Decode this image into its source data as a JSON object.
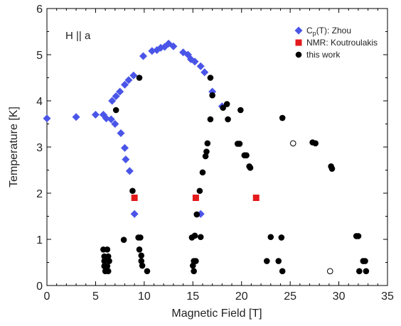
{
  "chart_data": {
    "type": "scatter",
    "title": "",
    "xlabel": "Magnetic Field [T]",
    "ylabel": "Temperature [K]",
    "xlim": [
      0,
      35
    ],
    "ylim": [
      0,
      6
    ],
    "xticks": [
      0,
      5,
      10,
      15,
      20,
      25,
      30,
      35
    ],
    "yticks": [
      0,
      1,
      2,
      3,
      4,
      5,
      6
    ],
    "grid": false,
    "legend_position": "top-right",
    "annotation": "H || a",
    "series": [
      {
        "name": "Cp(T): Zhou",
        "legend_main": "C",
        "legend_sub": "p",
        "legend_rest": "(T): Zhou",
        "marker": "diamond",
        "color": "#4a55e8",
        "points": [
          [
            0,
            3.62
          ],
          [
            3.0,
            3.65
          ],
          [
            5.0,
            3.7
          ],
          [
            5.8,
            3.7
          ],
          [
            6.1,
            3.62
          ],
          [
            6.6,
            3.6
          ],
          [
            7.0,
            3.5
          ],
          [
            7.6,
            3.3
          ],
          [
            8.0,
            2.98
          ],
          [
            8.1,
            2.73
          ],
          [
            8.5,
            2.48
          ],
          [
            9.0,
            1.55
          ],
          [
            6.7,
            4.0
          ],
          [
            7.1,
            4.1
          ],
          [
            7.5,
            4.2
          ],
          [
            8.0,
            4.35
          ],
          [
            8.4,
            4.45
          ],
          [
            8.9,
            4.55
          ],
          [
            9.9,
            4.97
          ],
          [
            10.8,
            5.08
          ],
          [
            11.3,
            5.1
          ],
          [
            11.7,
            5.15
          ],
          [
            12.1,
            5.17
          ],
          [
            12.5,
            5.24
          ],
          [
            13.0,
            5.18
          ],
          [
            14.0,
            5.05
          ],
          [
            14.5,
            5.0
          ],
          [
            14.8,
            4.9
          ],
          [
            15.2,
            4.85
          ],
          [
            15.8,
            4.75
          ],
          [
            16.2,
            4.62
          ],
          [
            17.0,
            4.2
          ],
          [
            18.0,
            3.88
          ],
          [
            15.8,
            1.55
          ]
        ]
      },
      {
        "name": "NMR: Koutroulakis",
        "marker": "square",
        "color": "#e41a1c",
        "points": [
          [
            9.0,
            1.9
          ],
          [
            15.3,
            1.9
          ],
          [
            21.5,
            1.9
          ]
        ]
      },
      {
        "name": "this work",
        "marker": "circle",
        "color": "#000000",
        "points": [
          [
            5.8,
            0.78
          ],
          [
            6.2,
            0.78
          ],
          [
            5.9,
            0.63
          ],
          [
            6.3,
            0.63
          ],
          [
            5.9,
            0.53
          ],
          [
            6.4,
            0.53
          ],
          [
            5.9,
            0.42
          ],
          [
            6.2,
            0.42
          ],
          [
            6.0,
            0.31
          ],
          [
            6.3,
            0.31
          ],
          [
            7.1,
            3.8
          ],
          [
            7.9,
            0.99
          ],
          [
            8.8,
            2.05
          ],
          [
            9.5,
            4.5
          ],
          [
            9.4,
            1.04
          ],
          [
            9.6,
            1.04
          ],
          [
            9.5,
            0.78
          ],
          [
            9.7,
            0.65
          ],
          [
            9.7,
            0.53
          ],
          [
            9.8,
            0.43
          ],
          [
            10.3,
            0.31
          ],
          [
            14.9,
            1.04
          ],
          [
            15.2,
            1.08
          ],
          [
            15.8,
            1.05
          ],
          [
            15.1,
            0.53
          ],
          [
            15.3,
            0.53
          ],
          [
            15.0,
            0.43
          ],
          [
            15.1,
            0.31
          ],
          [
            15.4,
            1.54
          ],
          [
            15.7,
            2.05
          ],
          [
            16.0,
            2.45
          ],
          [
            16.3,
            2.8
          ],
          [
            16.4,
            2.9
          ],
          [
            16.5,
            3.08
          ],
          [
            16.8,
            3.6
          ],
          [
            17.0,
            4.12
          ],
          [
            16.8,
            4.5
          ],
          [
            18.1,
            3.85
          ],
          [
            18.5,
            3.93
          ],
          [
            18.6,
            3.6
          ],
          [
            19.6,
            3.07
          ],
          [
            19.8,
            3.07
          ],
          [
            19.9,
            3.8
          ],
          [
            20.3,
            2.82
          ],
          [
            20.5,
            2.82
          ],
          [
            20.8,
            2.58
          ],
          [
            20.9,
            2.55
          ],
          [
            22.6,
            0.53
          ],
          [
            23.0,
            1.05
          ],
          [
            23.8,
            0.53
          ],
          [
            24.1,
            1.04
          ],
          [
            24.2,
            0.31
          ],
          [
            24.2,
            3.63
          ],
          [
            27.3,
            3.1
          ],
          [
            27.6,
            3.08
          ],
          [
            29.2,
            2.58
          ],
          [
            29.3,
            2.53
          ],
          [
            31.8,
            1.07
          ],
          [
            32.0,
            1.07
          ],
          [
            32.1,
            0.31
          ],
          [
            32.5,
            0.53
          ],
          [
            32.7,
            0.53
          ],
          [
            32.8,
            0.31
          ]
        ],
        "open_points": [
          [
            25.3,
            3.08
          ],
          [
            29.1,
            0.31
          ]
        ]
      }
    ]
  }
}
